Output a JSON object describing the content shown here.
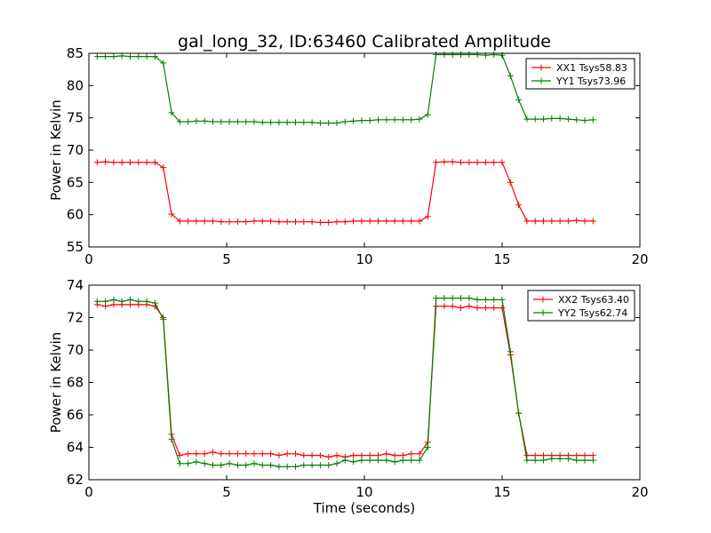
{
  "chart_data": [
    {
      "type": "line",
      "title": "gal_long_32, ID:63460 Calibrated Amplitude",
      "xlabel": "",
      "ylabel": "Power in Kelvin",
      "xlim": [
        0,
        20
      ],
      "ylim": [
        55,
        85
      ],
      "xticks": [
        "0",
        "5",
        "10",
        "15",
        "20"
      ],
      "yticks": [
        "55",
        "60",
        "65",
        "70",
        "75",
        "80",
        "85"
      ],
      "grid": false,
      "legend_position": "top-right",
      "x": [
        0.3,
        0.6,
        0.9,
        1.2,
        1.5,
        1.8,
        2.1,
        2.4,
        2.7,
        3.0,
        3.3,
        3.6,
        3.9,
        4.2,
        4.5,
        4.8,
        5.1,
        5.4,
        5.7,
        6.0,
        6.3,
        6.6,
        6.9,
        7.2,
        7.5,
        7.8,
        8.1,
        8.4,
        8.7,
        9.0,
        9.3,
        9.6,
        9.9,
        10.2,
        10.5,
        10.8,
        11.1,
        11.4,
        11.7,
        12.0,
        12.3,
        12.6,
        12.9,
        13.2,
        13.5,
        13.8,
        14.1,
        14.4,
        14.7,
        15.0,
        15.3,
        15.6,
        15.9,
        16.2,
        16.5,
        16.8,
        17.1,
        17.4,
        17.7,
        18.0,
        18.3
      ],
      "series": [
        {
          "name": "XX1 Tsys58.83",
          "color": "#ff0000",
          "values": [
            68.1,
            68.2,
            68.1,
            68.1,
            68.1,
            68.1,
            68.1,
            68.1,
            67.3,
            60.1,
            59.0,
            59.0,
            59.0,
            59.0,
            59.0,
            58.9,
            58.9,
            58.9,
            58.9,
            59.0,
            59.0,
            59.0,
            58.9,
            58.9,
            58.9,
            58.9,
            58.9,
            58.8,
            58.8,
            58.9,
            58.9,
            59.0,
            59.0,
            59.0,
            59.0,
            59.0,
            59.0,
            59.0,
            59.0,
            59.0,
            59.7,
            68.1,
            68.2,
            68.2,
            68.1,
            68.1,
            68.1,
            68.1,
            68.1,
            68.1,
            65.0,
            61.5,
            59.0,
            59.0,
            59.0,
            59.0,
            59.0,
            59.0,
            59.1,
            59.0,
            59.0
          ]
        },
        {
          "name": "YY1 Tsys73.96",
          "color": "#008000",
          "values": [
            84.5,
            84.5,
            84.5,
            84.6,
            84.5,
            84.5,
            84.5,
            84.5,
            83.5,
            75.8,
            74.4,
            74.4,
            74.5,
            74.5,
            74.4,
            74.4,
            74.4,
            74.4,
            74.4,
            74.4,
            74.3,
            74.3,
            74.3,
            74.3,
            74.3,
            74.3,
            74.3,
            74.2,
            74.2,
            74.2,
            74.4,
            74.5,
            74.6,
            74.6,
            74.7,
            74.7,
            74.7,
            74.7,
            74.7,
            74.8,
            75.5,
            84.8,
            84.8,
            84.8,
            84.8,
            84.8,
            84.8,
            84.7,
            84.8,
            84.7,
            81.5,
            77.8,
            74.8,
            74.8,
            74.8,
            74.9,
            74.9,
            74.8,
            74.7,
            74.6,
            74.7
          ]
        }
      ]
    },
    {
      "type": "line",
      "title": "",
      "xlabel": "Time (seconds)",
      "ylabel": "Power in Kelvin",
      "xlim": [
        0,
        20
      ],
      "ylim": [
        62,
        74
      ],
      "xticks": [
        "0",
        "5",
        "10",
        "15",
        "20"
      ],
      "yticks": [
        "62",
        "64",
        "66",
        "68",
        "70",
        "72",
        "74"
      ],
      "grid": false,
      "legend_position": "top-right",
      "x": [
        0.3,
        0.6,
        0.9,
        1.2,
        1.5,
        1.8,
        2.1,
        2.4,
        2.7,
        3.0,
        3.3,
        3.6,
        3.9,
        4.2,
        4.5,
        4.8,
        5.1,
        5.4,
        5.7,
        6.0,
        6.3,
        6.6,
        6.9,
        7.2,
        7.5,
        7.8,
        8.1,
        8.4,
        8.7,
        9.0,
        9.3,
        9.6,
        9.9,
        10.2,
        10.5,
        10.8,
        11.1,
        11.4,
        11.7,
        12.0,
        12.3,
        12.6,
        12.9,
        13.2,
        13.5,
        13.8,
        14.1,
        14.4,
        14.7,
        15.0,
        15.3,
        15.6,
        15.9,
        16.2,
        16.5,
        16.8,
        17.1,
        17.4,
        17.7,
        18.0,
        18.3
      ],
      "series": [
        {
          "name": "XX2 Tsys63.40",
          "color": "#ff0000",
          "values": [
            72.8,
            72.7,
            72.8,
            72.8,
            72.8,
            72.8,
            72.8,
            72.7,
            72.0,
            64.8,
            63.5,
            63.6,
            63.6,
            63.6,
            63.7,
            63.6,
            63.6,
            63.6,
            63.6,
            63.6,
            63.6,
            63.6,
            63.5,
            63.6,
            63.6,
            63.5,
            63.5,
            63.5,
            63.4,
            63.5,
            63.4,
            63.5,
            63.5,
            63.5,
            63.5,
            63.6,
            63.5,
            63.5,
            63.6,
            63.6,
            64.3,
            72.7,
            72.7,
            72.7,
            72.6,
            72.7,
            72.6,
            72.6,
            72.6,
            72.6,
            69.7,
            66.1,
            63.5,
            63.5,
            63.5,
            63.5,
            63.5,
            63.5,
            63.5,
            63.5,
            63.5
          ]
        },
        {
          "name": "YY2 Tsys62.74",
          "color": "#008000",
          "values": [
            73.0,
            73.0,
            73.1,
            73.0,
            73.1,
            73.0,
            73.0,
            72.9,
            71.9,
            64.5,
            63.0,
            63.0,
            63.1,
            63.0,
            62.9,
            62.9,
            63.0,
            62.9,
            62.9,
            63.0,
            62.9,
            62.9,
            62.8,
            62.8,
            62.8,
            62.9,
            62.9,
            62.9,
            62.9,
            63.0,
            63.2,
            63.1,
            63.2,
            63.2,
            63.2,
            63.2,
            63.1,
            63.2,
            63.2,
            63.2,
            64.0,
            73.2,
            73.2,
            73.2,
            73.2,
            73.2,
            73.1,
            73.1,
            73.1,
            73.1,
            69.9,
            66.1,
            63.2,
            63.2,
            63.2,
            63.3,
            63.3,
            63.3,
            63.2,
            63.2,
            63.2
          ]
        }
      ]
    }
  ]
}
